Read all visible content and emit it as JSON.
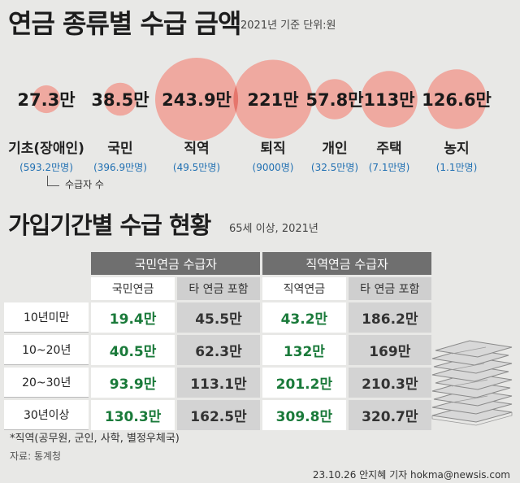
{
  "title": "연금 종류별 수급 금액",
  "subtitle": "2021년 기준 단위:원",
  "chart_data": [
    {
      "type": "bubble",
      "title": "연금 종류별 수급 금액",
      "subtitle": "2021년 기준 단위:원",
      "categories": [
        "기초(장애인)",
        "국민",
        "직역",
        "퇴직",
        "개인",
        "주택",
        "농지"
      ],
      "values": [
        27.3,
        38.5,
        243.9,
        221,
        57.8,
        113,
        126.6
      ],
      "value_labels": [
        "27.3만",
        "38.5만",
        "243.9만",
        "221만",
        "57.8만",
        "113만",
        "126.6만"
      ],
      "counts": [
        "(593.2만명)",
        "(396.9만명)",
        "(49.5만명)",
        "(9000명)",
        "(32.5만명)",
        "(7.1만명)",
        "(1.1만명)"
      ],
      "bubble_color": "#efa9a0",
      "overlap_color": "#e5766c"
    },
    {
      "type": "table",
      "title": "가입기간별 수급 현황",
      "subtitle": "65세 이상, 2021년",
      "groups": [
        "국민연금 수급자",
        "직역연금 수급자"
      ],
      "columns": [
        "국민연금",
        "타 연금 포함",
        "직역연금",
        "타 연금 포함"
      ],
      "rows": [
        {
          "label": "10년미만",
          "values": [
            "19.4만",
            "45.5만",
            "43.2만",
            "186.2만"
          ]
        },
        {
          "label": "10~20년",
          "values": [
            "40.5만",
            "62.3만",
            "132만",
            "169만"
          ]
        },
        {
          "label": "20~30년",
          "values": [
            "93.9만",
            "113.1만",
            "201.2만",
            "210.3만"
          ]
        },
        {
          "label": "30년이상",
          "values": [
            "130.3만",
            "162.5만",
            "309.8만",
            "320.7만"
          ]
        }
      ]
    }
  ],
  "legend_note": "수급자 수",
  "table_title": "가입기간별 수급 현황",
  "table_subtitle": "65세 이상, 2021년",
  "footnote": "*직역(공무원, 군인, 사학, 별정우체국)",
  "source": "자료: 통계청",
  "credit": "23.10.26 안지혜 기자 hokma@newsis.com",
  "colors": {
    "green": "#1a7a3a",
    "gray_cell": "#d3d3d3",
    "header": "#6f6f6f"
  }
}
